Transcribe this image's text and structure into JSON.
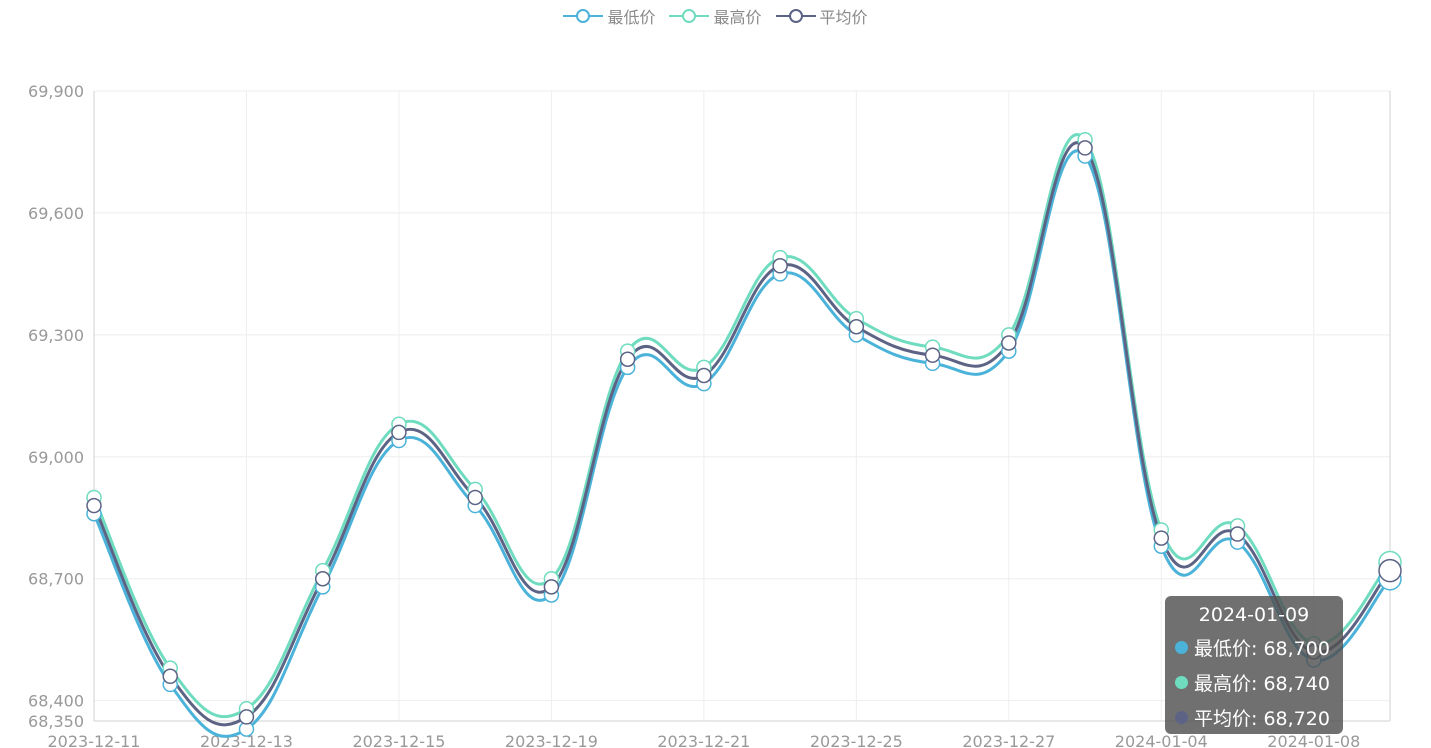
{
  "chart_data": {
    "type": "line",
    "smooth": true,
    "legend_position": "top-center",
    "grid": true,
    "x": [
      "2023-12-11",
      "2023-12-12",
      "2023-12-13",
      "2023-12-14",
      "2023-12-15",
      "2023-12-18",
      "2023-12-19",
      "2023-12-20",
      "2023-12-21",
      "2023-12-22",
      "2023-12-25",
      "2023-12-26",
      "2023-12-27",
      "2023-12-28",
      "2024-01-04",
      "2024-01-05",
      "2024-01-08",
      "2024-01-09"
    ],
    "x_tick_labels": [
      "2023-12-11",
      "2023-12-13",
      "2023-12-15",
      "2023-12-19",
      "2023-12-21",
      "2023-12-25",
      "2023-12-27",
      "2024-01-04",
      "2024-01-08"
    ],
    "ylim": [
      68350,
      69900
    ],
    "y_ticks": [
      68350,
      68400,
      68700,
      69000,
      69300,
      69600,
      69900
    ],
    "series": [
      {
        "name": "最低价",
        "color": "#4bb3d9",
        "values": [
          68860,
          68440,
          68330,
          68680,
          69040,
          68880,
          68660,
          69220,
          69180,
          69450,
          69300,
          69230,
          69260,
          69740,
          68780,
          68790,
          68500,
          68700
        ]
      },
      {
        "name": "最高价",
        "color": "#6fdcbf",
        "values": [
          68900,
          68480,
          68380,
          68720,
          69080,
          68920,
          68700,
          69260,
          69220,
          69490,
          69340,
          69270,
          69300,
          69780,
          68820,
          68830,
          68540,
          68740
        ]
      },
      {
        "name": "平均价",
        "color": "#5c6385",
        "values": [
          68880,
          68460,
          68360,
          68700,
          69060,
          68900,
          68680,
          69240,
          69200,
          69470,
          69320,
          69250,
          69280,
          69760,
          68800,
          68810,
          68520,
          68720
        ]
      }
    ]
  },
  "tooltip": {
    "date": "2024-01-09",
    "rows": [
      {
        "label": "最低价: 68,700",
        "color": "#4bb3d9"
      },
      {
        "label": "最高价: 68,740",
        "color": "#6fdcbf"
      },
      {
        "label": "平均价: 68,720",
        "color": "#5c6385"
      }
    ]
  }
}
